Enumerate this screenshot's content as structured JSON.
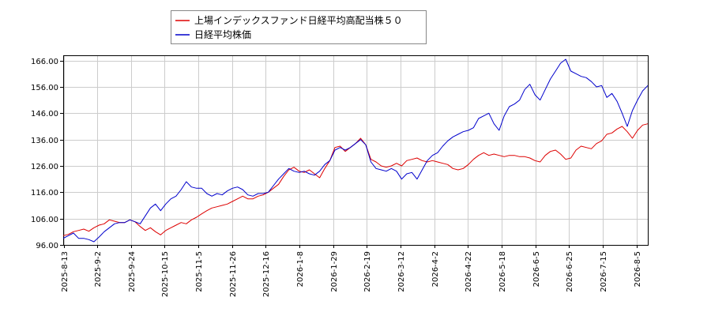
{
  "chart_data": {
    "type": "line",
    "title": "",
    "xlabel": "",
    "ylabel": "",
    "ylim": [
      96,
      168
    ],
    "y_ticks": [
      "96.00",
      "106.00",
      "116.00",
      "126.00",
      "136.00",
      "146.00",
      "156.00",
      "166.00"
    ],
    "x_ticks": [
      "2025-8-13",
      "2025-9-2",
      "2025-9-24",
      "2025-10-15",
      "2025-11-5",
      "2025-11-26",
      "2025-12-16",
      "2026-1-8",
      "2026-1-29",
      "2026-2-19",
      "2026-3-12",
      "2026-4-2",
      "2026-4-22",
      "2026-5-18",
      "2026-6-5",
      "2026-6-25",
      "2026-7-15",
      "2026-8-5"
    ],
    "grid": true,
    "legend_position": "top-left-outside",
    "series": [
      {
        "name": "上場インデックスファンド日経平均高配当株５０",
        "color": "#dd0000",
        "values": [
          99.5,
          100,
          101,
          101.5,
          102,
          101.2,
          102.5,
          103.5,
          104,
          105.5,
          105,
          104.5,
          104.5,
          105.5,
          104.8,
          103,
          101.5,
          102.5,
          101,
          99.8,
          101.5,
          102.5,
          103.5,
          104.5,
          104,
          105.5,
          106.5,
          107.8,
          109,
          110,
          110.5,
          111,
          111.5,
          112.5,
          113.5,
          114.5,
          113.5,
          113.5,
          114.5,
          115,
          116,
          117.5,
          119,
          122,
          124.5,
          125.5,
          124,
          123.5,
          124.5,
          123,
          121.5,
          125,
          128,
          133,
          133.5,
          131.5,
          133,
          134.5,
          136.5,
          134,
          128.5,
          127.5,
          126,
          125.5,
          126,
          127,
          126,
          128,
          128.5,
          129,
          128,
          127.5,
          128,
          127.5,
          127,
          126.5,
          125,
          124.5,
          125,
          126.5,
          128.5,
          130,
          131,
          130,
          130.5,
          130,
          129.5,
          130,
          130,
          129.5,
          129.5,
          129,
          128,
          127.5,
          130,
          131.5,
          132,
          130.5,
          128.5,
          129,
          132,
          133.5,
          133,
          132.5,
          134.5,
          135.5,
          138,
          138.5,
          140,
          141,
          139,
          136.5,
          139.5,
          141.5,
          142
        ]
      },
      {
        "name": "日経平均株価",
        "color": "#0000cc",
        "values": [
          98.5,
          99.5,
          100.5,
          98.5,
          98.5,
          98,
          97.2,
          99,
          101,
          102.5,
          104,
          104.5,
          104.5,
          105.5,
          104.8,
          104,
          107,
          110,
          111.5,
          109,
          111.5,
          113.5,
          114.5,
          117,
          120,
          118,
          117.5,
          117.5,
          115.5,
          114.5,
          115.5,
          115,
          116.5,
          117.5,
          118,
          117,
          115,
          114.5,
          115.5,
          115.5,
          116,
          118.5,
          121,
          123,
          125,
          124,
          123.5,
          124,
          123,
          122.5,
          124,
          126.5,
          128,
          132,
          133,
          132,
          133,
          134.5,
          136,
          134,
          127.5,
          125,
          124.5,
          124,
          125,
          124,
          121,
          123,
          123.5,
          121,
          124.5,
          128,
          130,
          131,
          133.5,
          135.5,
          137,
          138,
          139,
          139.5,
          140.5,
          144,
          145,
          146,
          142,
          139.5,
          145,
          148.5,
          149.5,
          151,
          155,
          157,
          153,
          151,
          155,
          159,
          162,
          165,
          166.5,
          162,
          161,
          160,
          159.5,
          158,
          156,
          156.5,
          152,
          153.5,
          150.5,
          146,
          141,
          147,
          151,
          154.5,
          156.5
        ]
      }
    ]
  }
}
